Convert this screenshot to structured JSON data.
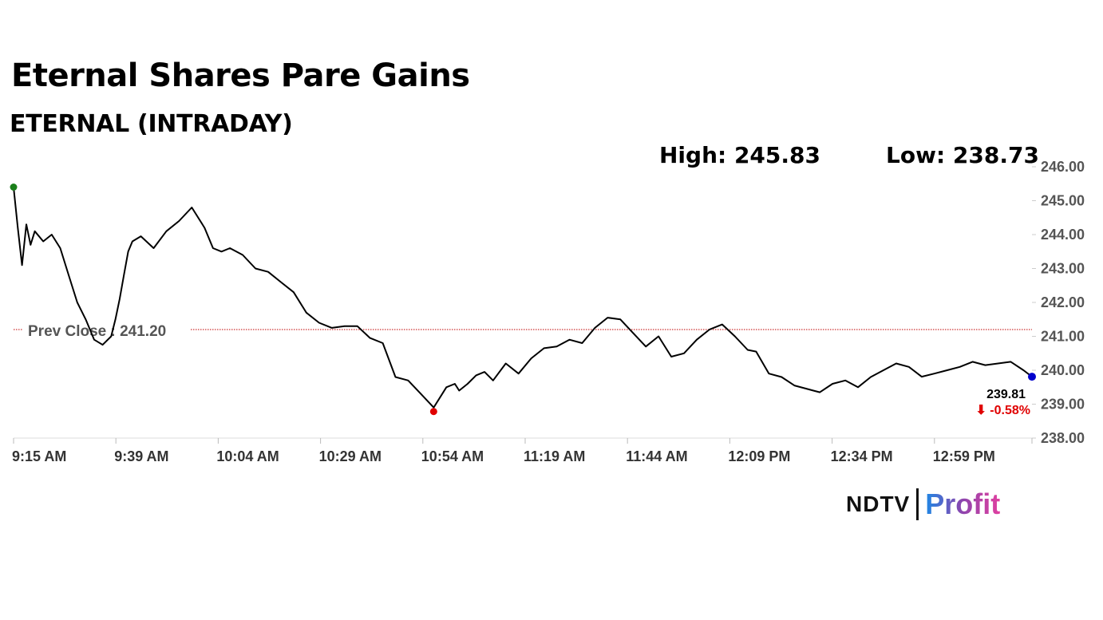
{
  "header": {
    "title": "Eternal Shares Pare Gains",
    "subtitle": "ETERNAL (INTRADAY)",
    "high_label": "High: 245.83",
    "low_label": "Low: 238.73"
  },
  "branding": {
    "ndtv": "NDTV",
    "profit": "Profit"
  },
  "chart_data": {
    "type": "line",
    "x_tick_labels": [
      "9:15 AM",
      "9:39 AM",
      "10:04 AM",
      "10:29 AM",
      "10:54 AM",
      "11:19 AM",
      "11:44 AM",
      "12:09 PM",
      "12:34 PM",
      "12:59 PM"
    ],
    "y_tick_labels": [
      "246.00",
      "245.00",
      "244.00",
      "243.00",
      "242.00",
      "241.00",
      "240.00",
      "239.00",
      "238.00"
    ],
    "ylim": [
      238,
      246
    ],
    "prev_close": 241.2,
    "prev_close_label": "Prev Close : 241.20",
    "last_value_label": "239.81",
    "change_label": "⬇ -0.58%",
    "series": [
      {
        "x": [
          "9:15",
          "9:16",
          "9:17",
          "9:18",
          "9:19",
          "9:20",
          "9:22",
          "9:24",
          "9:26",
          "9:28",
          "9:30",
          "9:32",
          "9:34",
          "9:36",
          "9:38",
          "9:39",
          "9:40",
          "9:41",
          "9:42",
          "9:43",
          "9:45",
          "9:48",
          "9:51",
          "9:54",
          "9:57",
          "10:00",
          "10:02",
          "10:04",
          "10:06",
          "10:09",
          "10:12",
          "10:15",
          "10:18",
          "10:21",
          "10:24",
          "10:27",
          "10:30",
          "10:33",
          "10:36",
          "10:39",
          "10:42",
          "10:45",
          "10:48",
          "10:51",
          "10:54",
          "10:57",
          "10:59",
          "11:00",
          "11:02",
          "11:04",
          "11:06",
          "11:08",
          "11:11",
          "11:14",
          "11:17",
          "11:20",
          "11:23",
          "11:26",
          "11:29",
          "11:32",
          "11:35",
          "11:38",
          "11:41",
          "11:44",
          "11:47",
          "11:50",
          "11:53",
          "11:56",
          "11:59",
          "12:02",
          "12:05",
          "12:08",
          "12:10",
          "12:13",
          "12:16",
          "12:19",
          "12:22",
          "12:25",
          "12:28",
          "12:31",
          "12:34",
          "12:37",
          "12:40",
          "12:43",
          "12:46",
          "12:49",
          "12:52",
          "12:55",
          "12:58",
          "13:01",
          "13:04",
          "13:07",
          "13:10",
          "13:13",
          "13:15"
        ],
        "y": [
          245.4,
          244.2,
          243.1,
          244.3,
          243.7,
          244.1,
          243.8,
          244.0,
          243.6,
          242.8,
          242.0,
          241.5,
          240.9,
          240.75,
          241.0,
          241.5,
          242.1,
          242.8,
          243.5,
          243.8,
          243.95,
          243.6,
          244.1,
          244.4,
          244.8,
          244.2,
          243.6,
          243.5,
          243.6,
          243.4,
          243.0,
          242.9,
          242.6,
          242.3,
          241.7,
          241.4,
          241.25,
          241.3,
          241.3,
          240.95,
          240.8,
          239.8,
          239.7,
          239.3,
          238.9,
          239.5,
          239.6,
          239.4,
          239.6,
          239.85,
          239.95,
          239.7,
          240.2,
          239.9,
          240.35,
          240.65,
          240.7,
          240.9,
          240.8,
          241.25,
          241.55,
          241.5,
          241.1,
          240.7,
          241.0,
          240.4,
          240.5,
          240.9,
          241.2,
          241.35,
          241.0,
          240.6,
          240.55,
          239.9,
          239.8,
          239.55,
          239.45,
          239.35,
          239.6,
          239.7,
          239.5,
          239.8,
          240.0,
          240.2,
          240.1,
          239.81,
          239.9,
          240.0,
          240.1,
          240.25,
          240.15,
          240.2,
          240.25,
          240.0,
          239.81
        ]
      }
    ],
    "colors": {
      "line": "#000000",
      "prev_close": "#c00000",
      "open_dot": "#1a7f1a",
      "low_dot": "#e00000",
      "last_dot": "#0000cc"
    }
  }
}
